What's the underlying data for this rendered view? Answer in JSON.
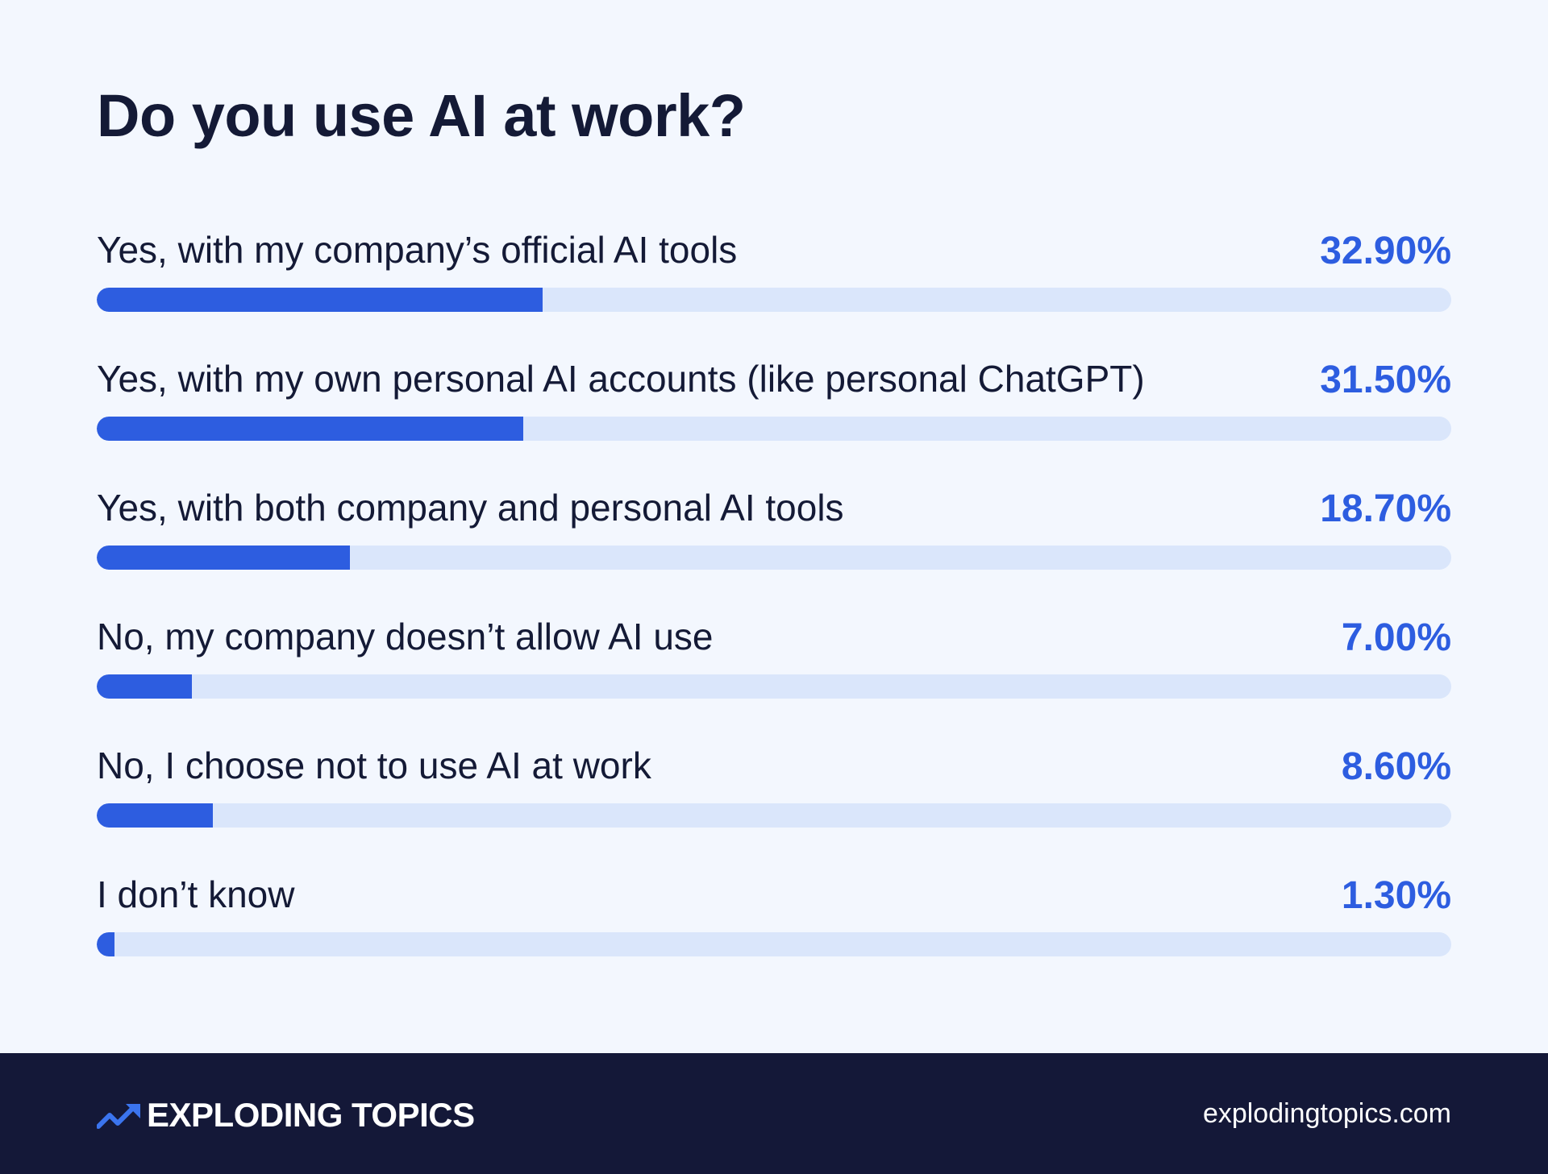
{
  "chart_data": {
    "type": "bar",
    "orientation": "horizontal",
    "title": "Do you use AI at work?",
    "categories": [
      "Yes, with my company’s official AI tools",
      "Yes, with my own personal AI accounts (like personal ChatGPT)",
      "Yes, with both company and personal AI tools",
      "No, my company doesn’t allow AI use",
      "No, I choose not to use AI at work",
      "I don’t know"
    ],
    "values": [
      32.9,
      31.5,
      18.7,
      7.0,
      8.6,
      1.3
    ],
    "value_labels": [
      "32.90%",
      "31.50%",
      "18.70%",
      "7.00%",
      "8.60%",
      "1.30%"
    ],
    "xlim": [
      0,
      100
    ],
    "grid": false,
    "legend": "none"
  },
  "colors": {
    "background": "#f3f7fe",
    "bar_fill": "#2d5de0",
    "bar_track": "#dae6fb",
    "title_text": "#141a36",
    "value_text": "#2d5de0",
    "footer_background": "#141838"
  },
  "footer": {
    "logo_icon": "trend-up-icon",
    "logo_text": "EXPLODING TOPICS",
    "website": "explodingtopics.com"
  }
}
